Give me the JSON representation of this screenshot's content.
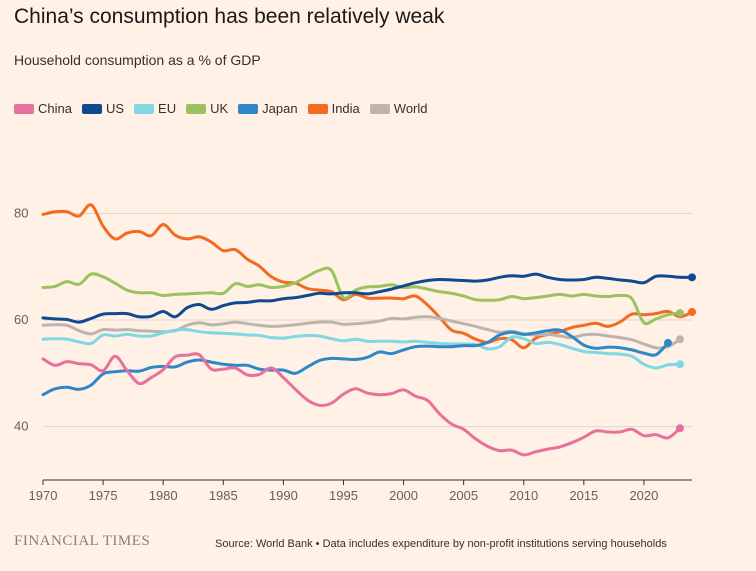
{
  "title": "China’s consumption has been relatively weak",
  "subtitle": "Household consumption as a % of GDP",
  "brand": "FINANCIAL TIMES",
  "source": "Source: World Bank • Data includes expenditure by non-profit institutions serving households",
  "legend": [
    {
      "name": "China",
      "color": "#e7719a"
    },
    {
      "name": "US",
      "color": "#0e4a8f"
    },
    {
      "name": "EU",
      "color": "#7fd8e4"
    },
    {
      "name": "UK",
      "color": "#9cc25f"
    },
    {
      "name": "Japan",
      "color": "#2d87c8"
    },
    {
      "name": "India",
      "color": "#f26b21"
    },
    {
      "name": "World",
      "color": "#bdb5ad"
    }
  ],
  "chart_data": {
    "type": "line",
    "title": "China’s consumption has been relatively weak",
    "subtitle": "Household consumption as a % of GDP",
    "xlabel": "",
    "ylabel": "",
    "xlim": [
      1970,
      2024
    ],
    "ylim": [
      30,
      90
    ],
    "x_ticks": [
      1970,
      1975,
      1980,
      1985,
      1990,
      1995,
      2000,
      2005,
      2010,
      2015,
      2020
    ],
    "y_ticks": [
      40,
      60,
      80
    ],
    "grid": "horizontal",
    "legend_position": "top-left",
    "series": [
      {
        "name": "India",
        "color": "#f26b21",
        "end_dot": true,
        "x": [
          1970,
          1971,
          1972,
          1973,
          1974,
          1975,
          1976,
          1977,
          1978,
          1979,
          1980,
          1981,
          1982,
          1983,
          1984,
          1985,
          1986,
          1987,
          1988,
          1989,
          1990,
          1991,
          1992,
          1993,
          1994,
          1995,
          1996,
          1997,
          1998,
          1999,
          2000,
          2001,
          2002,
          2003,
          2004,
          2005,
          2006,
          2007,
          2008,
          2009,
          2010,
          2011,
          2012,
          2013,
          2014,
          2015,
          2016,
          2017,
          2018,
          2019,
          2020,
          2021,
          2022,
          2023,
          2024
        ],
        "y": [
          79.8,
          80.3,
          80.3,
          79.5,
          81.6,
          77.6,
          75.2,
          76.3,
          76.6,
          75.8,
          77.9,
          75.9,
          75.2,
          75.6,
          74.6,
          73.0,
          73.2,
          71.4,
          70.1,
          68.1,
          67.1,
          66.9,
          65.9,
          65.6,
          65.3,
          63.8,
          64.8,
          64.1,
          64.1,
          64.1,
          64.0,
          64.5,
          62.8,
          60.5,
          58.1,
          57.5,
          56.4,
          55.8,
          56.5,
          56.3,
          54.8,
          56.6,
          57.3,
          57.8,
          58.6,
          59.0,
          59.4,
          58.8,
          59.6,
          61.1,
          61.0,
          61.2,
          61.6,
          60.6,
          61.5
        ]
      },
      {
        "name": "UK",
        "color": "#9cc25f",
        "end_dot": true,
        "x": [
          1970,
          1971,
          1972,
          1973,
          1974,
          1975,
          1976,
          1977,
          1978,
          1979,
          1980,
          1981,
          1982,
          1983,
          1984,
          1985,
          1986,
          1987,
          1988,
          1989,
          1990,
          1991,
          1992,
          1993,
          1994,
          1995,
          1996,
          1997,
          1998,
          1999,
          2000,
          2001,
          2002,
          2003,
          2004,
          2005,
          2006,
          2007,
          2008,
          2009,
          2010,
          2011,
          2012,
          2013,
          2014,
          2015,
          2016,
          2017,
          2018,
          2019,
          2020,
          2021,
          2022,
          2023
        ],
        "y": [
          66.1,
          66.3,
          67.2,
          66.7,
          68.6,
          68.1,
          66.9,
          65.6,
          65.1,
          65.1,
          64.6,
          64.8,
          64.9,
          65.0,
          65.1,
          65.0,
          66.8,
          66.3,
          66.6,
          66.1,
          66.3,
          67.0,
          68.2,
          69.3,
          69.3,
          64.2,
          65.6,
          66.2,
          66.3,
          66.6,
          66.1,
          66.2,
          65.8,
          65.3,
          65.0,
          64.5,
          63.8,
          63.7,
          63.8,
          64.4,
          64.0,
          64.2,
          64.5,
          64.8,
          64.5,
          64.8,
          64.5,
          64.4,
          64.6,
          64.0,
          59.5,
          60.2,
          61.0,
          61.3
        ]
      },
      {
        "name": "World",
        "color": "#bdb5ad",
        "end_dot": true,
        "x": [
          1970,
          1971,
          1972,
          1973,
          1974,
          1975,
          1976,
          1977,
          1978,
          1979,
          1980,
          1981,
          1982,
          1983,
          1984,
          1985,
          1986,
          1987,
          1988,
          1989,
          1990,
          1991,
          1992,
          1993,
          1994,
          1995,
          1996,
          1997,
          1998,
          1999,
          2000,
          2001,
          2002,
          2003,
          2004,
          2005,
          2006,
          2007,
          2008,
          2009,
          2010,
          2011,
          2012,
          2013,
          2014,
          2015,
          2016,
          2017,
          2018,
          2019,
          2020,
          2021,
          2022,
          2023
        ],
        "y": [
          59.0,
          59.1,
          59.0,
          58.0,
          57.4,
          58.2,
          58.1,
          58.2,
          58.0,
          57.9,
          57.8,
          58.0,
          59.0,
          59.5,
          59.1,
          59.3,
          59.6,
          59.3,
          59.0,
          58.8,
          58.9,
          59.1,
          59.4,
          59.6,
          59.6,
          59.2,
          59.3,
          59.5,
          59.8,
          60.3,
          60.2,
          60.5,
          60.6,
          60.3,
          59.8,
          59.3,
          58.8,
          58.2,
          57.7,
          57.9,
          57.4,
          57.2,
          57.3,
          57.0,
          56.7,
          57.2,
          57.3,
          57.0,
          56.7,
          56.3,
          55.5,
          54.8,
          55.0,
          56.4
        ]
      },
      {
        "name": "US",
        "color": "#0e4a8f",
        "end_dot": true,
        "x": [
          1970,
          1971,
          1972,
          1973,
          1974,
          1975,
          1976,
          1977,
          1978,
          1979,
          1980,
          1981,
          1982,
          1983,
          1984,
          1985,
          1986,
          1987,
          1988,
          1989,
          1990,
          1991,
          1992,
          1993,
          1994,
          1995,
          1996,
          1997,
          1998,
          1999,
          2000,
          2001,
          2002,
          2003,
          2004,
          2005,
          2006,
          2007,
          2008,
          2009,
          2010,
          2011,
          2012,
          2013,
          2014,
          2015,
          2016,
          2017,
          2018,
          2019,
          2020,
          2021,
          2022,
          2023,
          2024
        ],
        "y": [
          60.4,
          60.2,
          60.1,
          59.6,
          60.3,
          61.1,
          61.2,
          61.2,
          60.6,
          60.7,
          61.6,
          60.6,
          62.3,
          62.9,
          62.0,
          62.7,
          63.2,
          63.3,
          63.6,
          63.6,
          64.0,
          64.2,
          64.6,
          65.0,
          64.9,
          65.1,
          65.1,
          64.9,
          65.3,
          65.8,
          66.4,
          67.0,
          67.4,
          67.6,
          67.5,
          67.4,
          67.3,
          67.5,
          68.0,
          68.3,
          68.2,
          68.6,
          68.0,
          67.6,
          67.5,
          67.6,
          68.0,
          67.8,
          67.5,
          67.3,
          67.0,
          68.2,
          68.2,
          68.0,
          68.0
        ]
      },
      {
        "name": "EU",
        "color": "#7fd8e4",
        "end_dot": true,
        "x": [
          1970,
          1971,
          1972,
          1973,
          1974,
          1975,
          1976,
          1977,
          1978,
          1979,
          1980,
          1981,
          1982,
          1983,
          1984,
          1985,
          1986,
          1987,
          1988,
          1989,
          1990,
          1991,
          1992,
          1993,
          1994,
          1995,
          1996,
          1997,
          1998,
          1999,
          2000,
          2001,
          2002,
          2003,
          2004,
          2005,
          2006,
          2007,
          2008,
          2009,
          2010,
          2011,
          2012,
          2013,
          2014,
          2015,
          2016,
          2017,
          2018,
          2019,
          2020,
          2021,
          2022,
          2023
        ],
        "y": [
          56.4,
          56.5,
          56.4,
          55.9,
          55.6,
          57.2,
          57.0,
          57.3,
          57.0,
          57.0,
          57.6,
          58.1,
          58.2,
          57.8,
          57.6,
          57.5,
          57.4,
          57.2,
          57.1,
          56.7,
          56.6,
          56.9,
          57.1,
          57.0,
          56.5,
          56.1,
          56.4,
          56.0,
          56.0,
          56.0,
          55.9,
          56.0,
          55.8,
          55.6,
          55.5,
          55.5,
          55.4,
          54.6,
          55.0,
          56.8,
          56.5,
          55.6,
          55.8,
          55.4,
          54.7,
          54.1,
          53.9,
          53.7,
          53.6,
          53.2,
          51.7,
          51.0,
          51.6,
          51.7
        ]
      },
      {
        "name": "Japan",
        "color": "#2d87c8",
        "end_dot": true,
        "x": [
          1970,
          1971,
          1972,
          1973,
          1974,
          1975,
          1976,
          1977,
          1978,
          1979,
          1980,
          1981,
          1982,
          1983,
          1984,
          1985,
          1986,
          1987,
          1988,
          1989,
          1990,
          1991,
          1992,
          1993,
          1994,
          1995,
          1996,
          1997,
          1998,
          1999,
          2000,
          2001,
          2002,
          2003,
          2004,
          2005,
          2006,
          2007,
          2008,
          2009,
          2010,
          2011,
          2012,
          2013,
          2014,
          2015,
          2016,
          2017,
          2018,
          2019,
          2020,
          2021,
          2022
        ],
        "y": [
          46.0,
          47.1,
          47.4,
          47.0,
          47.8,
          49.9,
          50.3,
          50.5,
          50.4,
          51.1,
          51.3,
          51.2,
          52.1,
          52.5,
          52.1,
          51.7,
          51.5,
          51.5,
          50.8,
          50.6,
          50.6,
          50.0,
          51.2,
          52.4,
          52.8,
          52.7,
          52.6,
          53.0,
          54.0,
          53.7,
          54.4,
          55.0,
          55.1,
          55.0,
          55.0,
          55.2,
          55.2,
          55.8,
          57.2,
          57.7,
          57.3,
          57.6,
          58.0,
          58.1,
          56.9,
          55.3,
          54.7,
          54.9,
          54.8,
          54.4,
          53.8,
          53.5,
          55.7
        ]
      },
      {
        "name": "China",
        "color": "#e7719a",
        "end_dot": true,
        "x": [
          1970,
          1971,
          1972,
          1973,
          1974,
          1975,
          1976,
          1977,
          1978,
          1979,
          1980,
          1981,
          1982,
          1983,
          1984,
          1985,
          1986,
          1987,
          1988,
          1989,
          1990,
          1991,
          1992,
          1993,
          1994,
          1995,
          1996,
          1997,
          1998,
          1999,
          2000,
          2001,
          2002,
          2003,
          2004,
          2005,
          2006,
          2007,
          2008,
          2009,
          2010,
          2011,
          2012,
          2013,
          2014,
          2015,
          2016,
          2017,
          2018,
          2019,
          2020,
          2021,
          2022,
          2023
        ],
        "y": [
          52.7,
          51.5,
          52.2,
          51.8,
          51.6,
          50.5,
          53.2,
          50.5,
          48.1,
          49.2,
          50.7,
          53.1,
          53.4,
          53.5,
          50.8,
          50.8,
          51.0,
          49.7,
          49.8,
          51.0,
          49.2,
          47.0,
          45.0,
          44.0,
          44.4,
          46.1,
          47.1,
          46.3,
          46.0,
          46.2,
          46.9,
          45.7,
          44.9,
          42.4,
          40.5,
          39.5,
          37.7,
          36.3,
          35.5,
          35.6,
          34.7,
          35.3,
          35.8,
          36.2,
          37.0,
          38.0,
          39.2,
          39.0,
          39.0,
          39.5,
          38.3,
          38.5,
          37.9,
          39.7
        ]
      }
    ]
  }
}
